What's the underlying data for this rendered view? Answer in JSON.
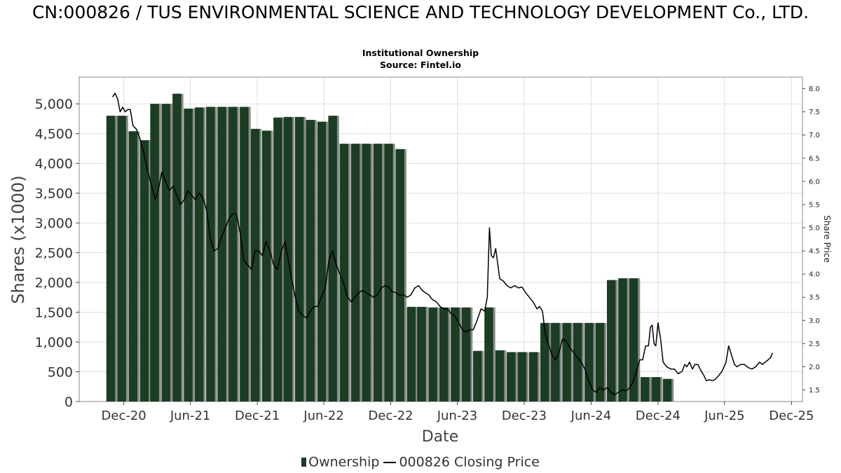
{
  "header": {
    "title": "CN:000826 / TUS ENVIRONMENTAL SCIENCE AND TECHNOLOGY DEVELOPMENT Co., LTD.",
    "subtitle": "Institutional Ownership",
    "source": "Source: Fintel.io"
  },
  "legend": {
    "ownership": "Ownership",
    "price": "000826 Closing Price"
  },
  "colors": {
    "bar": "#1a3d23",
    "bar_shadow": "#8a8a8a",
    "line": "#000000",
    "grid": "#dddddd"
  },
  "chart_data": {
    "type": "bar",
    "xlabel": "Date",
    "ylabel": "Shares (x1000)",
    "y2label": "Share Price",
    "ylim": [
      0,
      5450
    ],
    "y2lim": [
      1.25,
      8.25
    ],
    "yticks": [
      "0",
      "500",
      "1,000",
      "1,500",
      "2,000",
      "2,500",
      "3,000",
      "3,500",
      "4,000",
      "4,500",
      "5,000"
    ],
    "y2ticks": [
      "1.5",
      "2.0",
      "2.5",
      "3.0",
      "3.5",
      "4.0",
      "4.5",
      "5.0",
      "5.5",
      "6.0",
      "6.5",
      "7.0",
      "7.5",
      "8.0"
    ],
    "xticks": [
      "Dec-20",
      "Jun-21",
      "Dec-21",
      "Jun-22",
      "Dec-22",
      "Jun-23",
      "Dec-23",
      "Jun-24",
      "Dec-24",
      "Jun-25",
      "Dec-25"
    ],
    "x_start": "2020-08-01",
    "x_end": "2025-12-31",
    "grid": true,
    "legend_position": "bottom",
    "series": [
      {
        "name": "Ownership",
        "type": "bar",
        "data": [
          [
            "2020-10-31",
            4800
          ],
          [
            "2020-11-30",
            4800
          ],
          [
            "2020-12-31",
            4540
          ],
          [
            "2021-01-31",
            4390
          ],
          [
            "2021-02-28",
            5000
          ],
          [
            "2021-03-31",
            5000
          ],
          [
            "2021-04-30",
            5170
          ],
          [
            "2021-05-31",
            4920
          ],
          [
            "2021-06-30",
            4940
          ],
          [
            "2021-07-31",
            4950
          ],
          [
            "2021-08-31",
            4950
          ],
          [
            "2021-09-30",
            4950
          ],
          [
            "2021-10-31",
            4950
          ],
          [
            "2021-11-30",
            4580
          ],
          [
            "2021-12-31",
            4550
          ],
          [
            "2022-01-31",
            4770
          ],
          [
            "2022-02-28",
            4780
          ],
          [
            "2022-03-31",
            4780
          ],
          [
            "2022-04-30",
            4730
          ],
          [
            "2022-05-31",
            4700
          ],
          [
            "2022-06-30",
            4800
          ],
          [
            "2022-07-31",
            4330
          ],
          [
            "2022-08-31",
            4330
          ],
          [
            "2022-09-30",
            4330
          ],
          [
            "2022-10-31",
            4330
          ],
          [
            "2022-11-30",
            4330
          ],
          [
            "2022-12-31",
            4240
          ],
          [
            "2023-01-31",
            1590
          ],
          [
            "2023-02-28",
            1590
          ],
          [
            "2023-03-31",
            1580
          ],
          [
            "2023-04-30",
            1580
          ],
          [
            "2023-05-31",
            1580
          ],
          [
            "2023-06-30",
            1580
          ],
          [
            "2023-07-31",
            850
          ],
          [
            "2023-08-31",
            1580
          ],
          [
            "2023-09-30",
            860
          ],
          [
            "2023-10-31",
            830
          ],
          [
            "2023-11-30",
            830
          ],
          [
            "2023-12-31",
            830
          ],
          [
            "2024-01-31",
            1320
          ],
          [
            "2024-02-29",
            1320
          ],
          [
            "2024-03-31",
            1320
          ],
          [
            "2024-04-30",
            1320
          ],
          [
            "2024-05-31",
            1320
          ],
          [
            "2024-06-30",
            1320
          ],
          [
            "2024-07-31",
            2040
          ],
          [
            "2024-08-31",
            2070
          ],
          [
            "2024-09-30",
            2070
          ],
          [
            "2024-10-31",
            410
          ],
          [
            "2024-11-30",
            410
          ],
          [
            "2024-12-31",
            380
          ]
        ]
      },
      {
        "name": "000826 Closing Price",
        "type": "line",
        "axis": "right",
        "data": [
          [
            "2020-10-31",
            7.82
          ],
          [
            "2020-11-07",
            7.9
          ],
          [
            "2020-11-14",
            7.78
          ],
          [
            "2020-11-21",
            7.5
          ],
          [
            "2020-11-28",
            7.6
          ],
          [
            "2020-12-05",
            7.5
          ],
          [
            "2020-12-12",
            7.55
          ],
          [
            "2020-12-19",
            7.55
          ],
          [
            "2020-12-26",
            7.2
          ],
          [
            "2021-01-05",
            7.12
          ],
          [
            "2021-01-15",
            6.9
          ],
          [
            "2021-01-25",
            6.6
          ],
          [
            "2021-02-05",
            6.2
          ],
          [
            "2021-02-15",
            5.9
          ],
          [
            "2021-02-25",
            5.6
          ],
          [
            "2021-03-05",
            5.8
          ],
          [
            "2021-03-15",
            6.2
          ],
          [
            "2021-03-25",
            6.0
          ],
          [
            "2021-04-05",
            5.8
          ],
          [
            "2021-04-15",
            5.9
          ],
          [
            "2021-04-25",
            5.7
          ],
          [
            "2021-05-05",
            5.5
          ],
          [
            "2021-05-15",
            5.6
          ],
          [
            "2021-05-25",
            5.8
          ],
          [
            "2021-06-05",
            5.7
          ],
          [
            "2021-06-15",
            5.6
          ],
          [
            "2021-06-25",
            5.75
          ],
          [
            "2021-07-05",
            5.65
          ],
          [
            "2021-07-15",
            5.4
          ],
          [
            "2021-07-25",
            4.8
          ],
          [
            "2021-08-05",
            4.5
          ],
          [
            "2021-08-15",
            4.55
          ],
          [
            "2021-08-25",
            4.8
          ],
          [
            "2021-09-05",
            5.0
          ],
          [
            "2021-09-15",
            5.2
          ],
          [
            "2021-09-25",
            5.3
          ],
          [
            "2021-10-05",
            5.3
          ],
          [
            "2021-10-15",
            4.9
          ],
          [
            "2021-10-25",
            4.3
          ],
          [
            "2021-11-05",
            4.2
          ],
          [
            "2021-11-15",
            4.1
          ],
          [
            "2021-11-25",
            4.5
          ],
          [
            "2021-12-05",
            4.5
          ],
          [
            "2021-12-15",
            4.4
          ],
          [
            "2021-12-25",
            4.7
          ],
          [
            "2022-01-05",
            4.5
          ],
          [
            "2022-01-15",
            4.2
          ],
          [
            "2022-01-25",
            4.1
          ],
          [
            "2022-02-05",
            4.5
          ],
          [
            "2022-02-15",
            4.7
          ],
          [
            "2022-02-25",
            4.25
          ],
          [
            "2022-03-05",
            3.9
          ],
          [
            "2022-03-15",
            3.5
          ],
          [
            "2022-03-25",
            3.2
          ],
          [
            "2022-04-05",
            3.1
          ],
          [
            "2022-04-15",
            3.05
          ],
          [
            "2022-04-25",
            3.2
          ],
          [
            "2022-05-05",
            3.3
          ],
          [
            "2022-05-15",
            3.3
          ],
          [
            "2022-05-25",
            3.5
          ],
          [
            "2022-06-05",
            3.7
          ],
          [
            "2022-06-15",
            4.3
          ],
          [
            "2022-06-25",
            4.5
          ],
          [
            "2022-07-05",
            4.2
          ],
          [
            "2022-07-15",
            4.0
          ],
          [
            "2022-07-25",
            3.8
          ],
          [
            "2022-08-05",
            3.5
          ],
          [
            "2022-08-15",
            3.4
          ],
          [
            "2022-08-25",
            3.5
          ],
          [
            "2022-09-05",
            3.6
          ],
          [
            "2022-09-15",
            3.65
          ],
          [
            "2022-09-25",
            3.6
          ],
          [
            "2022-10-05",
            3.55
          ],
          [
            "2022-10-15",
            3.5
          ],
          [
            "2022-10-25",
            3.55
          ],
          [
            "2022-11-05",
            3.7
          ],
          [
            "2022-11-15",
            3.75
          ],
          [
            "2022-11-25",
            3.72
          ],
          [
            "2022-12-05",
            3.62
          ],
          [
            "2022-12-15",
            3.6
          ],
          [
            "2022-12-25",
            3.55
          ],
          [
            "2023-01-05",
            3.55
          ],
          [
            "2023-01-15",
            3.5
          ],
          [
            "2023-01-25",
            3.55
          ],
          [
            "2023-02-05",
            3.7
          ],
          [
            "2023-02-15",
            3.75
          ],
          [
            "2023-02-25",
            3.65
          ],
          [
            "2023-03-05",
            3.6
          ],
          [
            "2023-03-15",
            3.55
          ],
          [
            "2023-03-25",
            3.45
          ],
          [
            "2023-04-05",
            3.4
          ],
          [
            "2023-04-15",
            3.3
          ],
          [
            "2023-04-25",
            3.25
          ],
          [
            "2023-05-05",
            3.25
          ],
          [
            "2023-05-15",
            3.15
          ],
          [
            "2023-05-25",
            3.1
          ],
          [
            "2023-06-05",
            2.95
          ],
          [
            "2023-06-15",
            2.8
          ],
          [
            "2023-06-25",
            2.75
          ],
          [
            "2023-07-05",
            2.8
          ],
          [
            "2023-07-15",
            2.8
          ],
          [
            "2023-07-25",
            3.0
          ],
          [
            "2023-08-05",
            3.25
          ],
          [
            "2023-08-15",
            3.2
          ],
          [
            "2023-08-22",
            3.5
          ],
          [
            "2023-08-28",
            5.0
          ],
          [
            "2023-09-02",
            4.4
          ],
          [
            "2023-09-08",
            4.35
          ],
          [
            "2023-09-14",
            4.55
          ],
          [
            "2023-09-20",
            4.2
          ],
          [
            "2023-09-25",
            3.9
          ],
          [
            "2023-10-05",
            3.85
          ],
          [
            "2023-10-15",
            3.75
          ],
          [
            "2023-10-25",
            3.7
          ],
          [
            "2023-11-05",
            3.75
          ],
          [
            "2023-11-15",
            3.7
          ],
          [
            "2023-11-25",
            3.72
          ],
          [
            "2023-12-05",
            3.6
          ],
          [
            "2023-12-15",
            3.5
          ],
          [
            "2023-12-25",
            3.4
          ],
          [
            "2024-01-05",
            3.25
          ],
          [
            "2024-01-12",
            3.3
          ],
          [
            "2024-01-20",
            3.2
          ],
          [
            "2024-01-28",
            2.7
          ],
          [
            "2024-02-05",
            2.5
          ],
          [
            "2024-02-15",
            2.25
          ],
          [
            "2024-02-25",
            2.15
          ],
          [
            "2024-03-05",
            2.3
          ],
          [
            "2024-03-15",
            2.6
          ],
          [
            "2024-03-25",
            2.55
          ],
          [
            "2024-04-05",
            2.4
          ],
          [
            "2024-04-15",
            2.3
          ],
          [
            "2024-04-25",
            2.2
          ],
          [
            "2024-05-05",
            2.1
          ],
          [
            "2024-05-15",
            1.95
          ],
          [
            "2024-05-25",
            1.7
          ],
          [
            "2024-06-05",
            1.5
          ],
          [
            "2024-06-15",
            1.45
          ],
          [
            "2024-06-25",
            1.55
          ],
          [
            "2024-07-05",
            1.5
          ],
          [
            "2024-07-15",
            1.55
          ],
          [
            "2024-07-25",
            1.45
          ],
          [
            "2024-08-05",
            1.4
          ],
          [
            "2024-08-15",
            1.45
          ],
          [
            "2024-08-25",
            1.5
          ],
          [
            "2024-09-05",
            1.48
          ],
          [
            "2024-09-15",
            1.55
          ],
          [
            "2024-09-25",
            1.7
          ],
          [
            "2024-10-05",
            1.95
          ],
          [
            "2024-10-12",
            2.15
          ],
          [
            "2024-10-20",
            2.15
          ],
          [
            "2024-10-28",
            2.45
          ],
          [
            "2024-11-05",
            2.45
          ],
          [
            "2024-11-10",
            2.85
          ],
          [
            "2024-11-15",
            2.9
          ],
          [
            "2024-11-20",
            2.5
          ],
          [
            "2024-11-25",
            2.45
          ],
          [
            "2024-12-01",
            2.95
          ],
          [
            "2024-12-08",
            2.6
          ],
          [
            "2024-12-15",
            2.1
          ],
          [
            "2024-12-25",
            2.0
          ],
          [
            "2025-01-05",
            1.95
          ],
          [
            "2025-01-15",
            1.95
          ],
          [
            "2025-01-25",
            1.85
          ],
          [
            "2025-02-05",
            1.9
          ],
          [
            "2025-02-12",
            2.05
          ],
          [
            "2025-02-18",
            2.0
          ],
          [
            "2025-02-25",
            2.1
          ],
          [
            "2025-03-05",
            1.95
          ],
          [
            "2025-03-12",
            2.05
          ],
          [
            "2025-03-20",
            2.05
          ],
          [
            "2025-03-28",
            1.92
          ],
          [
            "2025-04-05",
            1.82
          ],
          [
            "2025-04-12",
            1.7
          ],
          [
            "2025-04-20",
            1.72
          ],
          [
            "2025-04-28",
            1.7
          ],
          [
            "2025-05-05",
            1.72
          ],
          [
            "2025-05-15",
            1.8
          ],
          [
            "2025-05-25",
            1.9
          ],
          [
            "2025-06-05",
            2.1
          ],
          [
            "2025-06-12",
            2.45
          ],
          [
            "2025-06-20",
            2.25
          ],
          [
            "2025-06-28",
            2.05
          ],
          [
            "2025-07-05",
            2.0
          ],
          [
            "2025-07-15",
            2.05
          ],
          [
            "2025-07-25",
            2.05
          ],
          [
            "2025-08-05",
            1.98
          ],
          [
            "2025-08-15",
            1.95
          ],
          [
            "2025-08-25",
            2.0
          ],
          [
            "2025-09-05",
            2.1
          ],
          [
            "2025-09-12",
            2.05
          ],
          [
            "2025-09-20",
            2.1
          ],
          [
            "2025-09-28",
            2.15
          ],
          [
            "2025-10-05",
            2.2
          ],
          [
            "2025-10-10",
            2.3
          ]
        ]
      }
    ]
  }
}
